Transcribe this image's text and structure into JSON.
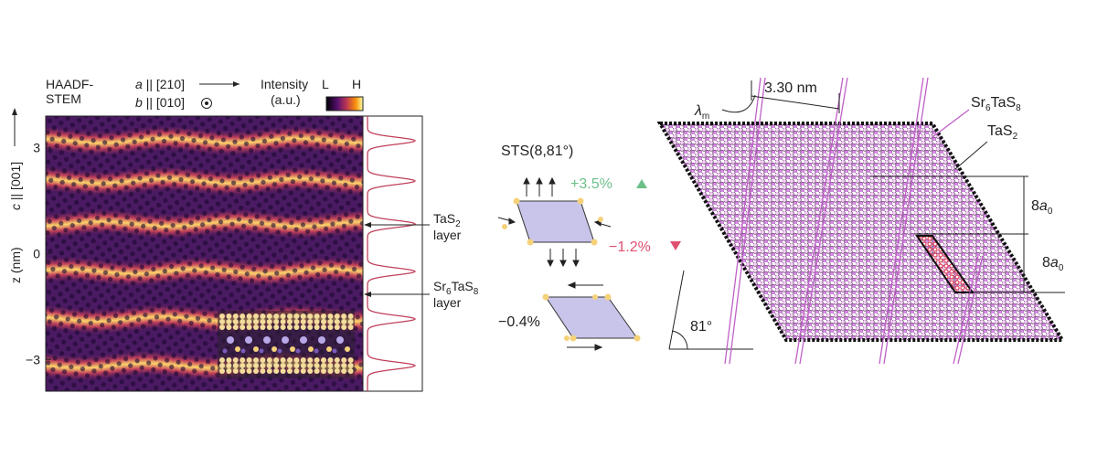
{
  "panel_a": {
    "label_haadf": [
      "HAADF-",
      "STEM"
    ],
    "a_axis": {
      "symbol": "a",
      "direction": "|| [210]"
    },
    "b_axis": {
      "symbol": "b",
      "direction": "|| [010]"
    },
    "intensity": [
      "Intensity",
      "(a.u.)"
    ],
    "colorbar_low": "L",
    "colorbar_high": "H",
    "y_axis_label": "z (nm)",
    "c_axis": {
      "symbol": "c",
      "direction": "|| [001]"
    },
    "ylim": [
      -3.9,
      3.9
    ],
    "yticks": [
      3,
      0,
      {
        "value": -3,
        "label": "−3"
      }
    ],
    "tas2_layer": {
      "formula": [
        "TaS",
        "2"
      ],
      "word": "layer"
    },
    "sr6tas8_layer": {
      "formula": [
        "Sr",
        "6",
        "TaS",
        "8"
      ],
      "word": "layer"
    }
  },
  "panel_b": {
    "title": "STS(8,81°)",
    "strain_top": "+3.5%",
    "strain_middle": "−1.2%",
    "strain_bottom": "−0.4%",
    "angle": "81°"
  },
  "panel_c": {
    "lambda": [
      "λ",
      "m"
    ],
    "period": "3.30 nm",
    "sr6tas8": [
      "Sr",
      "6",
      "TaS",
      "8"
    ],
    "tas2": [
      "TaS",
      "2"
    ],
    "spacing_upper": [
      "8",
      "a",
      "0"
    ],
    "spacing_lower": [
      "8",
      "a",
      "0"
    ]
  }
}
